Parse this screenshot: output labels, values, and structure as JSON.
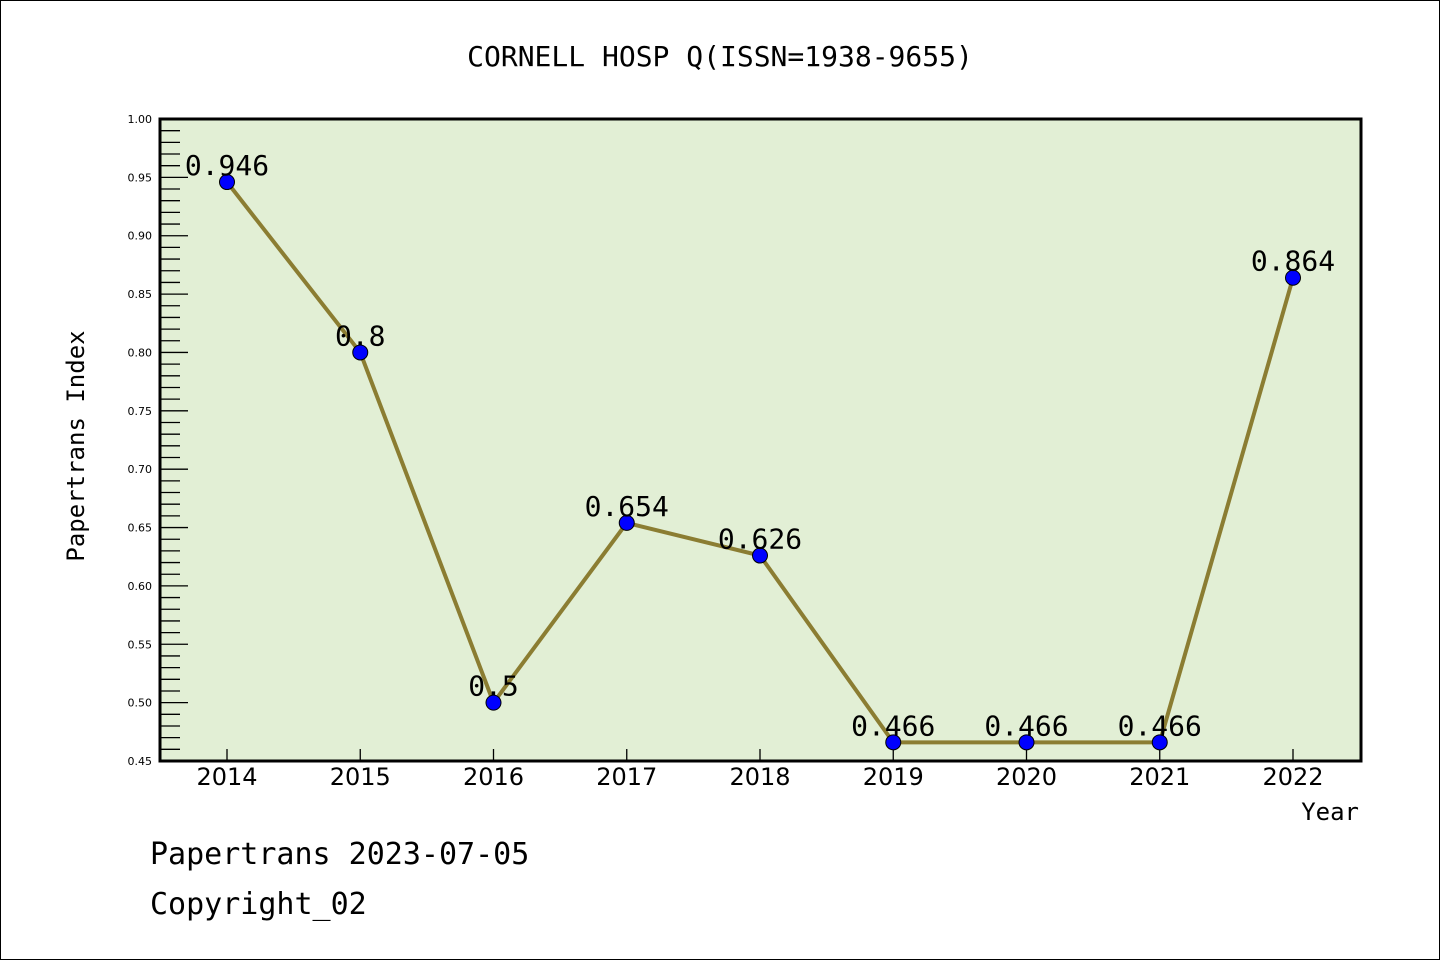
{
  "chart_data": {
    "type": "line",
    "title": "CORNELL HOSP Q(ISSN=1938-9655)",
    "xlabel": "Year",
    "ylabel": "Papertrans Index",
    "x": [
      "2014",
      "2015",
      "2016",
      "2017",
      "2018",
      "2019",
      "2020",
      "2021",
      "2022"
    ],
    "series": [
      {
        "name": "Papertrans Index",
        "values": [
          0.946,
          0.8,
          0.5,
          0.654,
          0.626,
          0.466,
          0.466,
          0.466,
          0.864
        ]
      }
    ],
    "data_labels": [
      "0.946",
      "0.8",
      "0.5",
      "0.654",
      "0.626",
      "0.466",
      "0.466",
      "0.466",
      "0.864"
    ],
    "ylim": [
      0.45,
      1.0
    ],
    "yticks": [
      "0.45",
      "0.50",
      "0.55",
      "0.60",
      "0.65",
      "0.70",
      "0.75",
      "0.80",
      "0.85",
      "0.90",
      "0.95",
      "1.00"
    ],
    "grid": false,
    "colors": {
      "line": "#8b7d32",
      "marker": "#0000ff",
      "plot_bg": "#e2efd5"
    }
  },
  "footer": {
    "line1": "Papertrans 2023-07-05",
    "line2": "Copyright_02"
  }
}
